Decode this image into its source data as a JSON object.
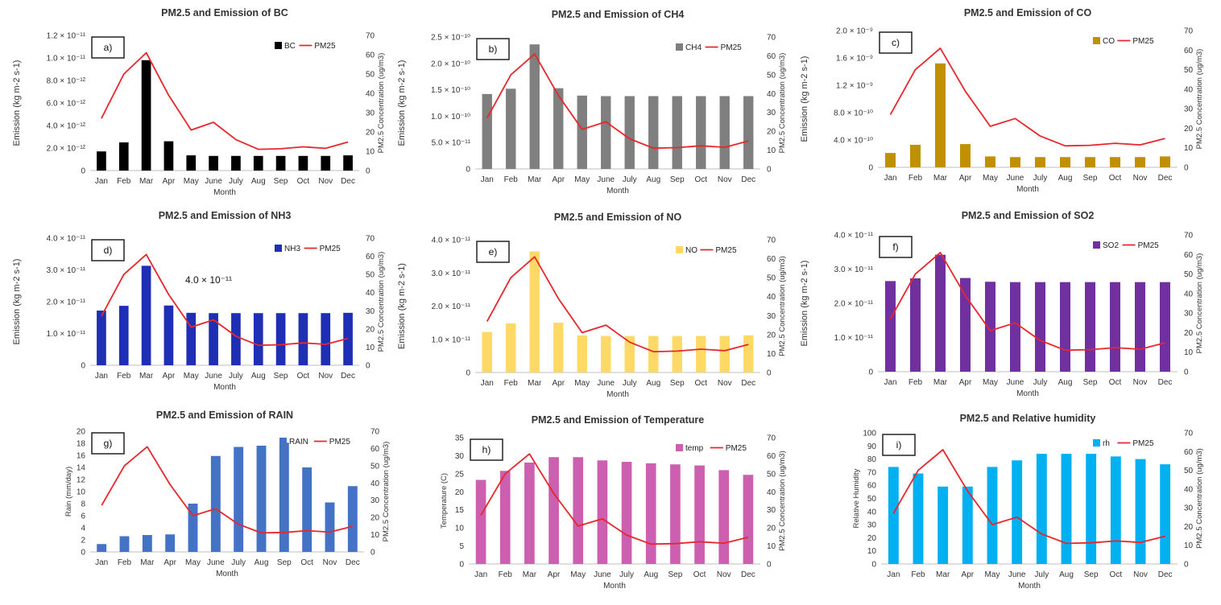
{
  "chart_data": [
    {
      "type": "bar",
      "panel": "a)",
      "title": "PM2.5 and Emission of BC",
      "xlabel": "Month",
      "ylabel": "Emission (kg m-2 s-1)",
      "y2label": "PM2.5 Concentration (ug/m3)",
      "bar_name": "BC",
      "line_name": "PM25",
      "bar_color": "#000000",
      "ylim": [
        0,
        12
      ],
      "y_ticks": [
        0,
        2,
        4,
        6,
        8,
        10,
        12
      ],
      "y_tick_labels": [
        "0",
        "2.0 × 10⁻¹²",
        "4.0 × 10⁻¹²",
        "6.0 × 10⁻¹²",
        "8.0 × 10⁻¹²",
        "1.0 × 10⁻¹¹",
        "1.2 × 10⁻¹¹"
      ],
      "values": [
        1.7,
        2.5,
        9.8,
        2.6,
        1.35,
        1.3,
        1.3,
        1.3,
        1.3,
        1.3,
        1.3,
        1.35
      ]
    },
    {
      "type": "bar",
      "panel": "b)",
      "title": "PM2.5 and Emission of CH4",
      "xlabel": "Month",
      "ylabel": "Emission (kg m-2 s-1)",
      "y2label": "PM2.5 Concentration (ug/m3)",
      "bar_name": "CH4",
      "line_name": "PM25",
      "bar_color": "#7f7f7f",
      "ylim": [
        0,
        25
      ],
      "y_ticks": [
        0,
        5,
        10,
        15,
        20,
        25
      ],
      "y_tick_labels": [
        "0",
        "5.0 × 10⁻¹¹",
        "1.0 × 10⁻¹⁰",
        "1.5 × 10⁻¹⁰",
        "2.0 × 10⁻¹⁰",
        "2.5 × 10⁻¹⁰"
      ],
      "values": [
        14.2,
        15.2,
        23.6,
        15.3,
        13.9,
        13.8,
        13.8,
        13.8,
        13.8,
        13.8,
        13.8,
        13.8
      ]
    },
    {
      "type": "bar",
      "panel": "c)",
      "title": "PM2.5 and Emission of CO",
      "xlabel": "Month",
      "ylabel": "Emission (kg m-2 s-1)",
      "y2label": "PM2.5 Concentration (ug/m3)",
      "bar_name": "CO",
      "line_name": "PM25",
      "bar_color": "#bf9000",
      "ylim": [
        0,
        20
      ],
      "y_ticks": [
        0,
        4,
        8,
        12,
        16,
        20
      ],
      "y_tick_labels": [
        "0",
        "4.0 × 10⁻¹⁰",
        "8.0 × 10⁻¹⁰",
        "1.2 × 10⁻⁹",
        "1.6 × 10⁻⁹",
        "2.0 × 10⁻⁹"
      ],
      "values": [
        2.1,
        3.3,
        15.2,
        3.4,
        1.6,
        1.5,
        1.5,
        1.5,
        1.5,
        1.5,
        1.5,
        1.6
      ]
    },
    {
      "type": "bar",
      "panel": "d)",
      "title": "PM2.5 and Emission of NH3",
      "xlabel": "Month",
      "ylabel": "Emission (kg m-2 s-1)",
      "y2label": "PM2.5 Concentration (ug/m3)",
      "bar_name": "NH3",
      "line_name": "PM25",
      "bar_color": "#1f2fb5",
      "ylim": [
        0,
        4
      ],
      "y_ticks": [
        0,
        1,
        2,
        3,
        4
      ],
      "y_tick_labels": [
        "0",
        "1.0 × 10⁻¹¹",
        "2.0 × 10⁻¹¹",
        "3.0 × 10⁻¹¹",
        "4.0 × 10⁻¹¹"
      ],
      "values": [
        1.72,
        1.87,
        3.13,
        1.88,
        1.65,
        1.64,
        1.64,
        1.64,
        1.64,
        1.64,
        1.64,
        1.65
      ],
      "annotation": "4.0 × 10⁻¹¹"
    },
    {
      "type": "bar",
      "panel": "e)",
      "title": "PM2.5 and Emission of NO",
      "xlabel": "Month",
      "ylabel": "Emission (kg m-2 s-1)",
      "y2label": "PM2.5 Concentration (ug/m3)",
      "bar_name": "NO",
      "line_name": "PM25",
      "bar_color": "#ffd966",
      "ylim": [
        0,
        4
      ],
      "y_ticks": [
        0,
        1,
        2,
        3,
        4
      ],
      "y_tick_labels": [
        "0",
        "1.0 × 10⁻¹¹",
        "2.0 × 10⁻¹¹",
        "3.0 × 10⁻¹¹",
        "4.0 × 10⁻¹¹"
      ],
      "values": [
        1.22,
        1.48,
        3.65,
        1.5,
        1.12,
        1.1,
        1.1,
        1.1,
        1.1,
        1.1,
        1.1,
        1.12
      ]
    },
    {
      "type": "bar",
      "panel": "f)",
      "title": "PM2.5 and Emission of SO2",
      "xlabel": "Month",
      "ylabel": "Emission (kg m-2 s-1)",
      "y2label": "PM2.5 Concentration (ug/m3)",
      "bar_name": "SO2",
      "line_name": "PM25",
      "bar_color": "#7030a0",
      "ylim": [
        0,
        4
      ],
      "y_ticks": [
        0,
        1,
        2,
        3,
        4
      ],
      "y_tick_labels": [
        "0",
        "1.0 × 10⁻¹¹",
        "2.0 × 10⁻¹¹",
        "3.0 × 10⁻¹¹",
        "4.0 × 10⁻¹¹"
      ],
      "values": [
        2.65,
        2.73,
        3.42,
        2.74,
        2.63,
        2.62,
        2.62,
        2.62,
        2.62,
        2.62,
        2.62,
        2.62
      ]
    },
    {
      "type": "bar",
      "panel": "g)",
      "title": "PM2.5 and Emission of RAIN",
      "xlabel": "Month",
      "ylabel": "Rain (mm/day)",
      "y2label": "PM2.5 Concentration (ug/m3)",
      "bar_name": "RAIN",
      "line_name": "PM25",
      "bar_color": "#4472c4",
      "ylim": [
        0,
        20
      ],
      "y_ticks": [
        0,
        2,
        4,
        6,
        8,
        10,
        12,
        14,
        16,
        18,
        20
      ],
      "y_tick_labels": [
        "0",
        "2",
        "4",
        "6",
        "8",
        "10",
        "12",
        "14",
        "16",
        "18",
        "20"
      ],
      "values": [
        1.3,
        2.6,
        2.8,
        2.9,
        8.0,
        15.9,
        17.4,
        17.6,
        18.1,
        14.0,
        8.2,
        10.9
      ]
    },
    {
      "type": "bar",
      "panel": "h)",
      "title": "PM2.5 and Emission of Temperature",
      "xlabel": "Month",
      "ylabel": "Temperature (C)",
      "y2label": "PM2.5 Concentration (ug/m3)",
      "bar_name": "temp",
      "line_name": "PM25",
      "bar_color": "#cc5fb0",
      "ylim": [
        0,
        35
      ],
      "y_ticks": [
        0,
        5,
        10,
        15,
        20,
        25,
        30,
        35
      ],
      "y_tick_labels": [
        "0",
        "5",
        "10",
        "15",
        "20",
        "25",
        "30",
        "35"
      ],
      "values": [
        23.3,
        25.8,
        28.1,
        29.6,
        29.6,
        28.7,
        28.3,
        27.9,
        27.6,
        27.3,
        26.0,
        24.7
      ]
    },
    {
      "type": "bar",
      "panel": "i)",
      "title": "PM2.5 and Relative humidity",
      "xlabel": "Month",
      "ylabel": "Relative Humidity",
      "y2label": "PM2.5 Concentration (ug/m3)",
      "bar_name": "rh",
      "line_name": "PM25",
      "bar_color": "#00b0f0",
      "ylim": [
        0,
        100
      ],
      "y_ticks": [
        0,
        10,
        20,
        30,
        40,
        50,
        60,
        70,
        80,
        90,
        100
      ],
      "y_tick_labels": [
        "0",
        "10",
        "20",
        "30",
        "40",
        "50",
        "60",
        "70",
        "80",
        "90",
        "100"
      ],
      "values": [
        74,
        69,
        59,
        59,
        74,
        79,
        84,
        84,
        84,
        82,
        80,
        76
      ]
    }
  ],
  "shared": {
    "categories": [
      "Jan",
      "Feb",
      "Mar",
      "Apr",
      "May",
      "June",
      "July",
      "Aug",
      "Sep",
      "Oct",
      "Nov",
      "Dec"
    ],
    "pm25": [
      27,
      50,
      61,
      39,
      21,
      25,
      16,
      11,
      11.3,
      12.3,
      11.5,
      14.8
    ],
    "y2lim": [
      0,
      70
    ],
    "y2_ticks": [
      0,
      10,
      20,
      30,
      40,
      50,
      60,
      70
    ],
    "line_color": "#e8262b"
  }
}
